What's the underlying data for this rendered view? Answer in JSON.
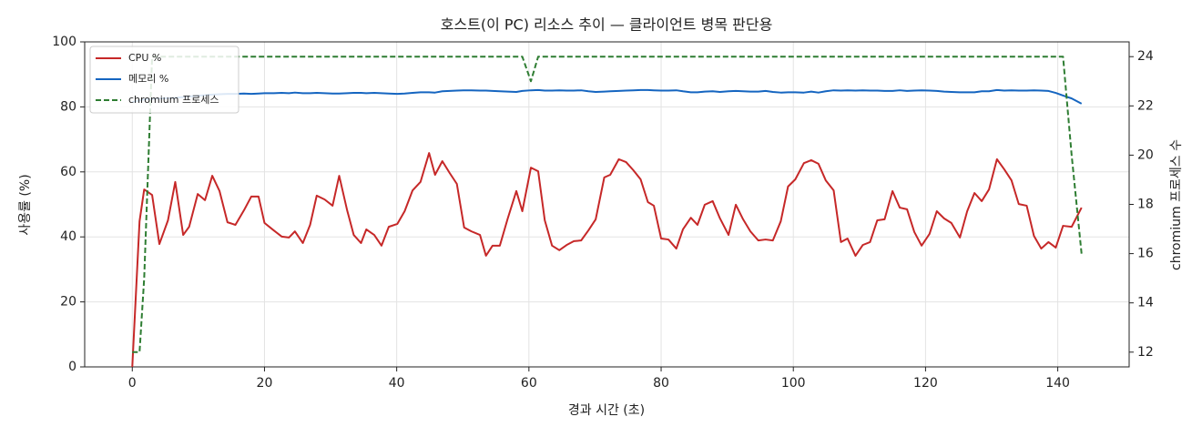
{
  "chart_data": {
    "type": "line",
    "title": "호스트(이 PC) 리소스 추이 — 클라이언트 병목 판단용",
    "xlabel": "경과 시간 (초)",
    "ylabel": "사용률 (%)",
    "y2label": "chromium 프로세스 수",
    "x": [
      0,
      1.1,
      1.8,
      3.0,
      4.1,
      5.4,
      6.5,
      7.7,
      8.6,
      9.9,
      11.0,
      12.1,
      13.2,
      14.4,
      15.6,
      16.9,
      18.0,
      19.1,
      20.0,
      21.4,
      22.6,
      23.7,
      24.6,
      25.8,
      26.9,
      27.9,
      29.1,
      30.3,
      31.3,
      32.5,
      33.5,
      34.6,
      35.4,
      36.6,
      37.7,
      38.8,
      40.1,
      41.2,
      42.4,
      43.6,
      44.9,
      45.8,
      46.9,
      48.0,
      49.1,
      50.2,
      51.3,
      52.6,
      53.5,
      54.5,
      55.6,
      56.8,
      58.1,
      59.0,
      60.3,
      61.4,
      62.4,
      63.5,
      64.6,
      65.7,
      66.8,
      67.9,
      69.0,
      70.1,
      71.4,
      72.3,
      73.6,
      74.7,
      75.8,
      76.9,
      78.0,
      78.9,
      80.0,
      81.1,
      82.3,
      83.3,
      84.5,
      85.5,
      86.6,
      87.8,
      88.9,
      90.2,
      91.3,
      92.4,
      93.5,
      94.7,
      95.8,
      96.9,
      98.1,
      99.2,
      100.3,
      101.6,
      102.7,
      103.8,
      104.9,
      106.1,
      107.2,
      108.2,
      109.4,
      110.5,
      111.6,
      112.7,
      113.8,
      115.0,
      116.1,
      117.2,
      118.3,
      119.4,
      120.6,
      121.7,
      122.8,
      123.9,
      125.2,
      126.3,
      127.4,
      128.5,
      129.6,
      130.8,
      131.9,
      133.0,
      134.1,
      135.3,
      136.4,
      137.5,
      138.6,
      139.7,
      140.8,
      142.1,
      143.6
    ],
    "series": [
      {
        "name": "CPU %",
        "color": "#c62828",
        "style": "solid",
        "values": [
          0,
          44.8,
          54.6,
          52.9,
          37.8,
          45.1,
          56.9,
          40.6,
          43.1,
          53.2,
          51.3,
          58.8,
          54.1,
          44.5,
          43.7,
          48.2,
          52.4,
          52.4,
          44.3,
          42.0,
          40.1,
          39.8,
          41.7,
          38.1,
          43.7,
          52.7,
          51.5,
          49.6,
          58.8,
          48.2,
          40.6,
          38.1,
          42.3,
          40.6,
          37.3,
          43.1,
          44.0,
          47.9,
          54.3,
          56.9,
          65.8,
          59.1,
          63.3,
          59.7,
          56.3,
          42.9,
          41.7,
          40.6,
          34.2,
          37.3,
          37.3,
          45.7,
          54.1,
          47.9,
          61.3,
          60.2,
          45.1,
          37.3,
          35.9,
          37.5,
          38.7,
          38.9,
          42.0,
          45.4,
          58.3,
          59.1,
          63.9,
          63.0,
          60.5,
          57.7,
          50.7,
          49.6,
          39.5,
          39.2,
          36.4,
          42.3,
          45.9,
          43.7,
          49.9,
          51.0,
          45.7,
          40.6,
          49.9,
          45.4,
          41.7,
          38.9,
          39.2,
          38.9,
          44.8,
          55.5,
          57.7,
          62.7,
          63.6,
          62.5,
          57.4,
          54.3,
          38.4,
          39.5,
          34.2,
          37.5,
          38.4,
          45.1,
          45.4,
          54.1,
          49.0,
          48.5,
          41.5,
          37.3,
          40.9,
          47.9,
          45.7,
          44.3,
          39.8,
          47.9,
          53.5,
          51.0,
          54.6,
          63.9,
          60.8,
          57.4,
          50.1,
          49.6,
          40.3,
          36.4,
          38.4,
          36.7,
          43.4,
          43.1,
          49.0
        ]
      },
      {
        "name": "메모리 %",
        "color": "#1565c0",
        "style": "solid",
        "values": [
          81.5,
          82.0,
          82.3,
          82.5,
          82.6,
          82.7,
          82.8,
          83.0,
          83.2,
          83.4,
          83.6,
          83.8,
          83.9,
          84.0,
          84.0,
          84.1,
          84.0,
          84.1,
          84.2,
          84.2,
          84.3,
          84.2,
          84.4,
          84.2,
          84.2,
          84.3,
          84.2,
          84.1,
          84.1,
          84.2,
          84.3,
          84.3,
          84.2,
          84.3,
          84.2,
          84.1,
          84.0,
          84.1,
          84.3,
          84.5,
          84.5,
          84.4,
          84.8,
          84.9,
          85.0,
          85.1,
          85.1,
          85.0,
          85.0,
          84.9,
          84.8,
          84.7,
          84.6,
          84.9,
          85.1,
          85.2,
          85.0,
          85.0,
          85.1,
          85.0,
          85.0,
          85.1,
          84.8,
          84.6,
          84.7,
          84.8,
          84.9,
          85.0,
          85.1,
          85.2,
          85.2,
          85.1,
          85.0,
          85.0,
          85.1,
          84.8,
          84.5,
          84.5,
          84.7,
          84.8,
          84.6,
          84.8,
          84.9,
          84.8,
          84.7,
          84.7,
          84.9,
          84.6,
          84.4,
          84.5,
          84.5,
          84.4,
          84.7,
          84.4,
          84.8,
          85.1,
          85.0,
          85.1,
          85.0,
          85.1,
          85.0,
          85.0,
          84.9,
          84.9,
          85.1,
          84.9,
          85.0,
          85.1,
          85.0,
          84.9,
          84.7,
          84.6,
          84.5,
          84.5,
          84.5,
          84.8,
          84.8,
          85.2,
          85.0,
          85.1,
          85.0,
          85.0,
          85.1,
          85.0,
          84.9,
          84.3,
          83.5,
          82.6,
          81.0
        ]
      },
      {
        "name": "chromium 프로세스",
        "color": "#2e7d32",
        "style": "dashed",
        "axis": "y2",
        "values": [
          12,
          12,
          15,
          24,
          24,
          24,
          24,
          24,
          24,
          24,
          24,
          24,
          24,
          24,
          24,
          24,
          24,
          24,
          24,
          24,
          24,
          24,
          24,
          24,
          24,
          24,
          24,
          24,
          24,
          24,
          24,
          24,
          24,
          24,
          24,
          24,
          24,
          24,
          24,
          24,
          24,
          24,
          24,
          24,
          24,
          24,
          24,
          24,
          24,
          24,
          24,
          24,
          24,
          24,
          23,
          24,
          24,
          24,
          24,
          24,
          24,
          24,
          24,
          24,
          24,
          24,
          24,
          24,
          24,
          24,
          24,
          24,
          24,
          24,
          24,
          24,
          24,
          24,
          24,
          24,
          24,
          24,
          24,
          24,
          24,
          24,
          24,
          24,
          24,
          24,
          24,
          24,
          24,
          24,
          24,
          24,
          24,
          24,
          24,
          24,
          24,
          24,
          24,
          24,
          24,
          24,
          24,
          24,
          24,
          24,
          24,
          24,
          24,
          24,
          24,
          24,
          24,
          24,
          24,
          24,
          24,
          24,
          24,
          24,
          24,
          24,
          24,
          20,
          16
        ]
      }
    ],
    "xlim": [
      -7.2,
      150.8
    ],
    "xticks": [
      0,
      20,
      40,
      60,
      80,
      100,
      120,
      140
    ],
    "ylim": [
      0,
      100
    ],
    "yticks": [
      0,
      20,
      40,
      60,
      80,
      100
    ],
    "y2lim": [
      11.4,
      24.6
    ],
    "y2ticks": [
      12,
      14,
      16,
      18,
      20,
      22,
      24
    ],
    "grid": true,
    "legend": "upper left"
  }
}
